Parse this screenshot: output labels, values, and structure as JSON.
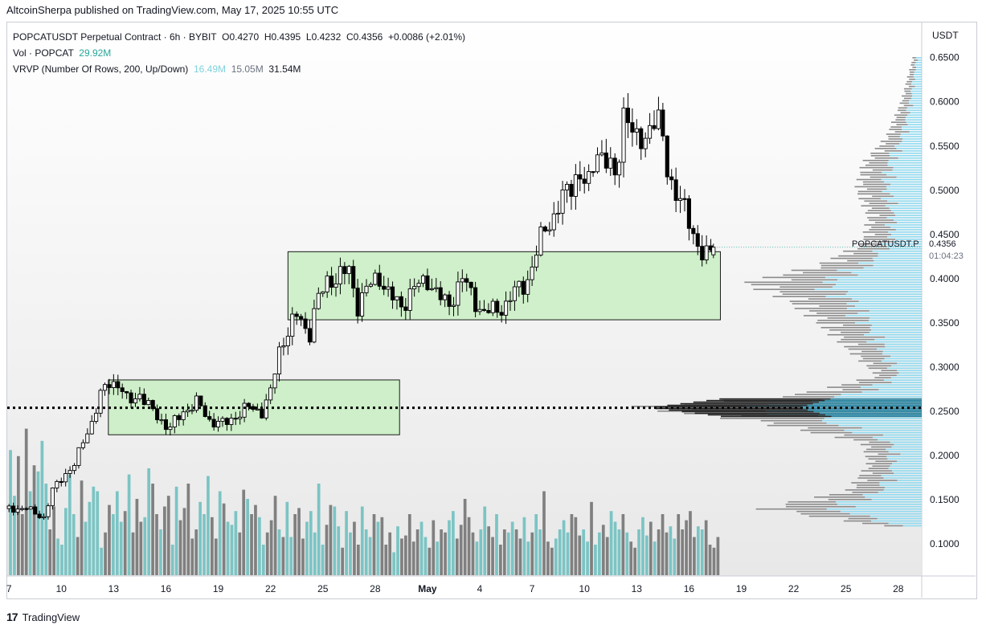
{
  "publisher_line": "AltcoinSherpa published on TradingView.com, May 17, 2025 10:55 UTC",
  "footer": {
    "logo_text": "17",
    "brand": "TradingView"
  },
  "legend": {
    "symbol_line": "POPCATUSDT Perpetual Contract · 6h · BYBIT",
    "open_label": "O",
    "open": "0.4270",
    "high_label": "H",
    "high": "0.4395",
    "low_label": "L",
    "low": "0.4232",
    "close_label": "C",
    "close": "0.4356",
    "change": "+0.0086 (+2.01%)",
    "vol_label": "Vol · POPCAT",
    "vol_value": "29.92M",
    "vrvp_label": "VRVP (Number Of Rows, 200, Up/Down)",
    "vrvp_up": "16.49M",
    "vrvp_down": "15.05M",
    "vrvp_total": "31.54M"
  },
  "price_axis": {
    "currency": "USDT",
    "last_price_tag": "POPCATUSDT.P",
    "last_price": "0.4356",
    "countdown": "01:04:23"
  },
  "colors": {
    "up": "#26a69a",
    "down": "#000000",
    "box_fill": "#c8efc2",
    "box_stroke": "#1b1b1b",
    "vol_up": "#7cc4c4",
    "vol_down": "#808080",
    "vp_up": "#8fdaf0",
    "vp_down": "#8a8a8a"
  },
  "chart_data": {
    "type": "candlestick",
    "title": "POPCATUSDT Perpetual Contract · 6h · BYBIT",
    "timeframe": "6h",
    "x_tick_labels": [
      "7",
      "10",
      "13",
      "16",
      "19",
      "22",
      "25",
      "28",
      "May",
      "4",
      "7",
      "10",
      "13",
      "16",
      "19",
      "22",
      "25",
      "28"
    ],
    "x_tick_days": [
      7,
      10,
      13,
      16,
      19,
      22,
      25,
      28,
      31,
      34,
      37,
      40,
      43,
      46,
      49,
      52,
      55,
      58
    ],
    "y_tick_labels": [
      "0.6500",
      "0.6000",
      "0.5500",
      "0.5000",
      "0.4500",
      "0.4000",
      "0.3500",
      "0.3000",
      "0.2500",
      "0.2000",
      "0.1500",
      "0.1000"
    ],
    "y_ticks": [
      0.65,
      0.6,
      0.55,
      0.5,
      0.45,
      0.4,
      0.35,
      0.3,
      0.25,
      0.2,
      0.15,
      0.1
    ],
    "ylim": [
      0.0638,
      0.6897
    ],
    "xlim_days": [
      6.9,
      59.3
    ],
    "close_path": [
      [
        6.9,
        0.14
      ],
      [
        8,
        0.14
      ],
      [
        9,
        0.13
      ],
      [
        9.5,
        0.16
      ],
      [
        10,
        0.175
      ],
      [
        10.8,
        0.19
      ],
      [
        11.3,
        0.22
      ],
      [
        11.8,
        0.24
      ],
      [
        12.3,
        0.27
      ],
      [
        12.8,
        0.285
      ],
      [
        13.3,
        0.28
      ],
      [
        13.8,
        0.26
      ],
      [
        14.5,
        0.27
      ],
      [
        15,
        0.255
      ],
      [
        15.5,
        0.245
      ],
      [
        16.2,
        0.23
      ],
      [
        17,
        0.25
      ],
      [
        17.8,
        0.26
      ],
      [
        18.5,
        0.24
      ],
      [
        19.3,
        0.235
      ],
      [
        20,
        0.245
      ],
      [
        20.8,
        0.255
      ],
      [
        21.5,
        0.25
      ],
      [
        22,
        0.27
      ],
      [
        22.5,
        0.32
      ],
      [
        23.1,
        0.345
      ],
      [
        23.6,
        0.36
      ],
      [
        24.2,
        0.335
      ],
      [
        24.6,
        0.37
      ],
      [
        25.3,
        0.4
      ],
      [
        25.8,
        0.4
      ],
      [
        26.5,
        0.41
      ],
      [
        27,
        0.37
      ],
      [
        27.6,
        0.39
      ],
      [
        28.2,
        0.405
      ],
      [
        28.8,
        0.38
      ],
      [
        29.5,
        0.37
      ],
      [
        30.3,
        0.39
      ],
      [
        31,
        0.4
      ],
      [
        31.6,
        0.38
      ],
      [
        32.2,
        0.37
      ],
      [
        33,
        0.4
      ],
      [
        33.6,
        0.38
      ],
      [
        34.2,
        0.36
      ],
      [
        34.8,
        0.365
      ],
      [
        35.5,
        0.37
      ],
      [
        36.2,
        0.39
      ],
      [
        36.8,
        0.4
      ],
      [
        37.3,
        0.43
      ],
      [
        37.7,
        0.46
      ],
      [
        38.3,
        0.47
      ],
      [
        39,
        0.5
      ],
      [
        39.6,
        0.52
      ],
      [
        40.2,
        0.5
      ],
      [
        40.7,
        0.55
      ],
      [
        41.3,
        0.53
      ],
      [
        41.8,
        0.51
      ],
      [
        42.3,
        0.6
      ],
      [
        42.9,
        0.55
      ],
      [
        43.4,
        0.56
      ],
      [
        43.9,
        0.58
      ],
      [
        44.4,
        0.57
      ],
      [
        44.8,
        0.52
      ],
      [
        45.4,
        0.49
      ],
      [
        45.9,
        0.47
      ],
      [
        46.5,
        0.44
      ],
      [
        46.9,
        0.42
      ],
      [
        47.4,
        0.4356
      ]
    ],
    "last_candle": {
      "open": 0.427,
      "high": 0.4395,
      "low": 0.4232,
      "close": 0.4356
    },
    "last_candle_day": 47.4,
    "volume_profile": {
      "vpoc_price": 0.254,
      "nodes": [
        [
          0.118,
          0.1
        ],
        [
          0.14,
          0.55
        ],
        [
          0.16,
          0.25
        ],
        [
          0.19,
          0.18
        ],
        [
          0.215,
          0.2
        ],
        [
          0.24,
          0.6
        ],
        [
          0.254,
          1.0
        ],
        [
          0.27,
          0.4
        ],
        [
          0.29,
          0.15
        ],
        [
          0.32,
          0.25
        ],
        [
          0.35,
          0.35
        ],
        [
          0.375,
          0.45
        ],
        [
          0.395,
          0.6
        ],
        [
          0.415,
          0.35
        ],
        [
          0.44,
          0.2
        ],
        [
          0.47,
          0.18
        ],
        [
          0.5,
          0.22
        ],
        [
          0.53,
          0.2
        ],
        [
          0.56,
          0.12
        ],
        [
          0.6,
          0.07
        ],
        [
          0.65,
          0.03
        ]
      ]
    },
    "ranges": [
      {
        "name": "upper-range-box",
        "day_from": 23.0,
        "day_to": 47.8,
        "price_low": 0.3535,
        "price_high": 0.4305
      },
      {
        "name": "lower-range-box",
        "day_from": 12.7,
        "day_to": 29.4,
        "price_low": 0.2235,
        "price_high": 0.2855
      }
    ],
    "volume_series": [
      82,
      52,
      78,
      40,
      96,
      55,
      72,
      68,
      88,
      60,
      30,
      45,
      24,
      20,
      44,
      66,
      40,
      25,
      62,
      35,
      48,
      58,
      55,
      18,
      28,
      46,
      40,
      55,
      35,
      42,
      66,
      28,
      50,
      35,
      38,
      70,
      60,
      40,
      30,
      45,
      52,
      20,
      58,
      36,
      44,
      60,
      24,
      30,
      48,
      40,
      65,
      38,
      24,
      55,
      47,
      35,
      33,
      42,
      28,
      56,
      50,
      40,
      46,
      38,
      20,
      28,
      36,
      52,
      30,
      25,
      48,
      25,
      40,
      44,
      24,
      35,
      42,
      28,
      60,
      20,
      33,
      46,
      45,
      32,
      18,
      42,
      28,
      35,
      20,
      45,
      30,
      25,
      40,
      35,
      38,
      20,
      28,
      15,
      32,
      24,
      26,
      40,
      22,
      30,
      35,
      25,
      18,
      36,
      22,
      30,
      28,
      36,
      42,
      24,
      33,
      50,
      38,
      28,
      22,
      30,
      45,
      32,
      25,
      40,
      20,
      30,
      28,
      35,
      30,
      24,
      38,
      22,
      28,
      40,
      30,
      55,
      22,
      18,
      24,
      30,
      36,
      28,
      40,
      38,
      26,
      30,
      22,
      48,
      20,
      28,
      33,
      25,
      42,
      35,
      30,
      40,
      28,
      22,
      18,
      30,
      38,
      26,
      35,
      22,
      30,
      40,
      28,
      32,
      24,
      40,
      30,
      36,
      42,
      25,
      32,
      30,
      36,
      20,
      18,
      25
    ]
  }
}
